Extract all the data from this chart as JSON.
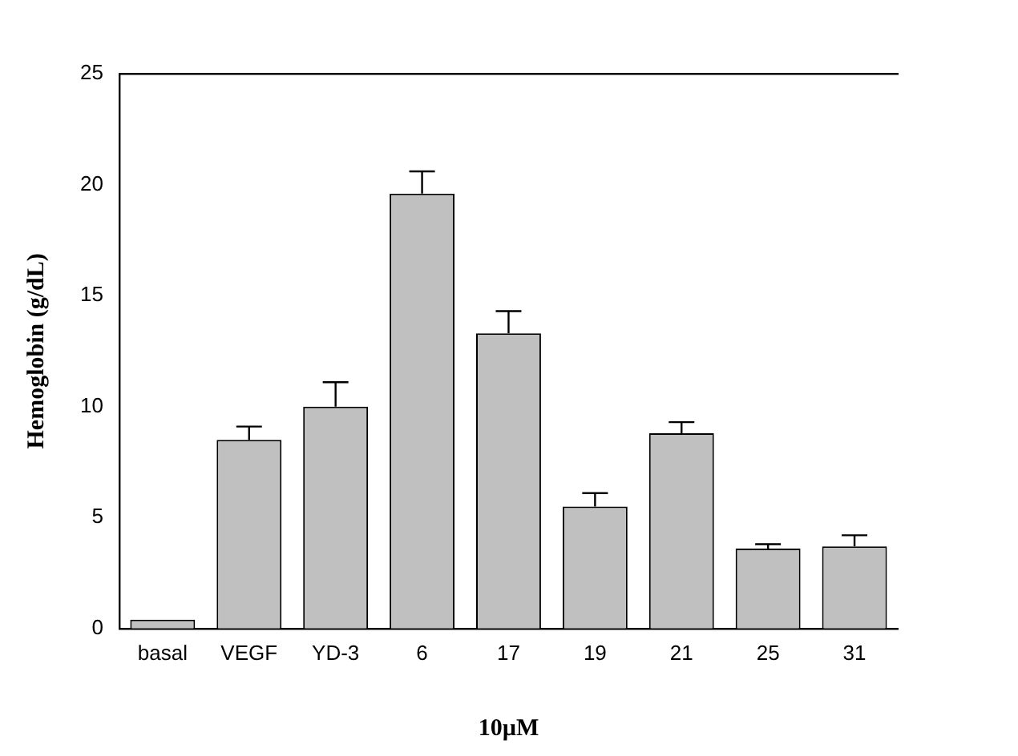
{
  "chart_data": {
    "type": "bar",
    "xlabel": "10µM",
    "ylabel": "Hemoglobin (g/dL)",
    "categories": [
      "basal",
      "VEGF",
      "YD-3",
      "6",
      "17",
      "19",
      "21",
      "25",
      "31"
    ],
    "values": [
      0.4,
      8.5,
      10.0,
      19.6,
      13.3,
      5.5,
      8.8,
      3.6,
      3.7
    ],
    "errors": [
      null,
      [
        8.5,
        9.1
      ],
      [
        10.0,
        11.1
      ],
      [
        19.6,
        20.6
      ],
      [
        13.3,
        14.3
      ],
      [
        5.5,
        6.1
      ],
      [
        8.8,
        9.3
      ],
      [
        3.6,
        3.8
      ],
      [
        3.7,
        4.2
      ]
    ],
    "color": "#c0c0c0",
    "ylim": [
      0,
      25
    ],
    "yticks": [
      0,
      5,
      10,
      15,
      20,
      25
    ],
    "grid": false,
    "legend": false
  }
}
